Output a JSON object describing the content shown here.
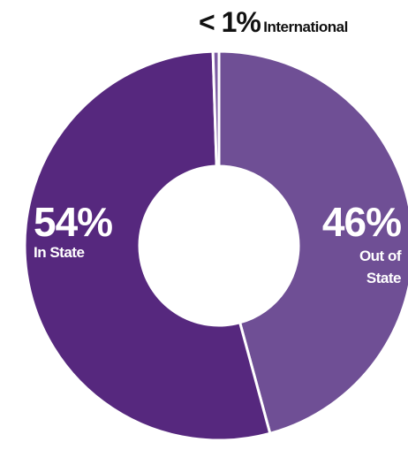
{
  "chart_data": {
    "type": "donut",
    "categories": [
      "Out of State",
      "In State",
      "International"
    ],
    "values": [
      46,
      54,
      0.5
    ],
    "value_labels": [
      "46%",
      "54%",
      "< 1%"
    ],
    "colors": [
      "#6f4f95",
      "#56287e",
      "#7d5ca3"
    ]
  }
}
